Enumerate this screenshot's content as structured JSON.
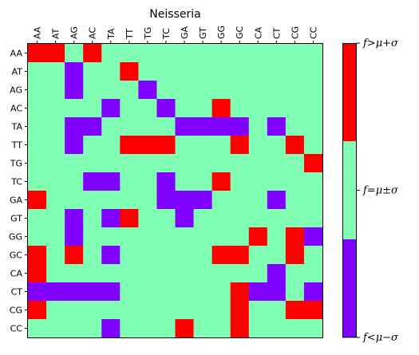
{
  "chart_data": {
    "type": "heatmap",
    "title": "Neisseria",
    "x_categories": [
      "AA",
      "AT",
      "AG",
      "AC",
      "TA",
      "TT",
      "TG",
      "TC",
      "GA",
      "GT",
      "GG",
      "GC",
      "CA",
      "CT",
      "CG",
      "CC"
    ],
    "y_categories": [
      "AA",
      "AT",
      "AG",
      "AC",
      "TA",
      "TT",
      "TG",
      "TC",
      "GA",
      "GT",
      "GG",
      "GC",
      "CA",
      "CT",
      "CG",
      "CC"
    ],
    "x_ticks_position": "top",
    "value_levels": [
      -1,
      0,
      1
    ],
    "level_colors": {
      "-1": "#8000ff",
      "0": "#80ffb4",
      "1": "#ff0000"
    },
    "colorbar": {
      "tick_labels": [
        "f<μ−σ",
        "f=μ±σ",
        "f>μ+σ"
      ],
      "position": "right"
    },
    "grid": false,
    "matrix": [
      [
        1,
        1,
        0,
        1,
        0,
        0,
        0,
        0,
        0,
        0,
        0,
        0,
        0,
        0,
        0,
        0
      ],
      [
        0,
        0,
        -1,
        0,
        0,
        1,
        0,
        0,
        0,
        0,
        0,
        0,
        0,
        0,
        0,
        0
      ],
      [
        0,
        0,
        -1,
        0,
        0,
        0,
        -1,
        0,
        0,
        0,
        0,
        0,
        0,
        0,
        0,
        0
      ],
      [
        0,
        0,
        0,
        0,
        -1,
        0,
        0,
        -1,
        0,
        0,
        1,
        0,
        0,
        0,
        0,
        0
      ],
      [
        0,
        0,
        -1,
        -1,
        0,
        0,
        0,
        0,
        -1,
        -1,
        -1,
        -1,
        0,
        -1,
        0,
        0
      ],
      [
        0,
        0,
        -1,
        0,
        0,
        1,
        1,
        1,
        0,
        0,
        0,
        1,
        0,
        0,
        1,
        0
      ],
      [
        0,
        0,
        0,
        0,
        0,
        0,
        0,
        0,
        0,
        0,
        0,
        0,
        0,
        0,
        0,
        1
      ],
      [
        0,
        0,
        0,
        -1,
        -1,
        0,
        0,
        -1,
        0,
        0,
        1,
        0,
        0,
        0,
        0,
        0
      ],
      [
        1,
        0,
        0,
        0,
        0,
        0,
        0,
        -1,
        -1,
        -1,
        0,
        0,
        0,
        -1,
        0,
        0
      ],
      [
        0,
        0,
        -1,
        0,
        -1,
        1,
        0,
        0,
        -1,
        0,
        0,
        0,
        0,
        0,
        0,
        0
      ],
      [
        0,
        0,
        -1,
        0,
        0,
        0,
        0,
        0,
        0,
        0,
        0,
        0,
        1,
        0,
        1,
        -1
      ],
      [
        1,
        0,
        1,
        0,
        -1,
        0,
        0,
        0,
        0,
        0,
        1,
        1,
        0,
        0,
        1,
        0
      ],
      [
        1,
        0,
        0,
        0,
        0,
        0,
        0,
        0,
        0,
        0,
        0,
        0,
        0,
        -1,
        0,
        0
      ],
      [
        -1,
        -1,
        -1,
        -1,
        -1,
        0,
        0,
        0,
        0,
        0,
        0,
        1,
        -1,
        -1,
        0,
        -1
      ],
      [
        1,
        0,
        0,
        0,
        0,
        0,
        0,
        0,
        0,
        0,
        0,
        1,
        0,
        0,
        1,
        1
      ],
      [
        0,
        0,
        0,
        0,
        -1,
        0,
        0,
        0,
        1,
        0,
        0,
        1,
        0,
        0,
        0,
        0
      ]
    ]
  }
}
